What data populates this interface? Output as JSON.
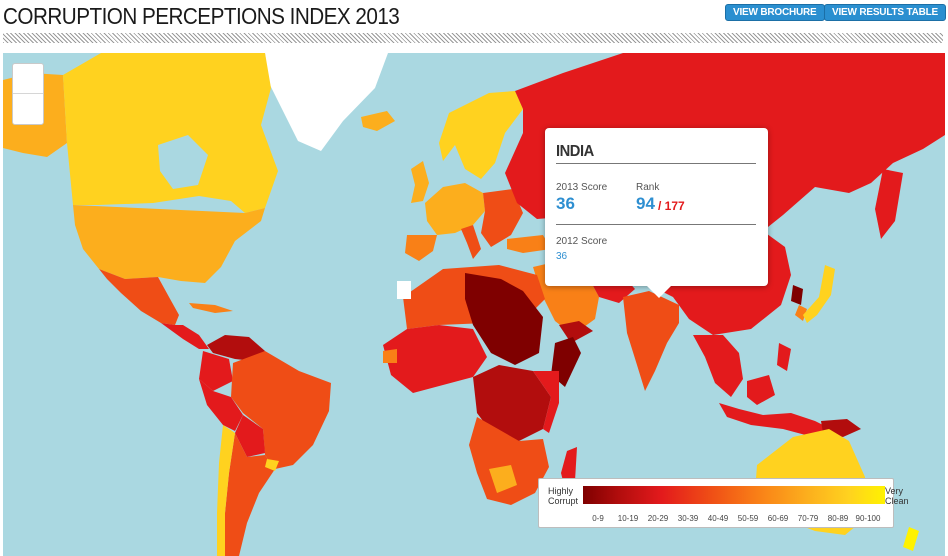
{
  "header": {
    "title": "CORRUPTION PERCEPTIONS INDEX 2013",
    "brochure_label": "VIEW BROCHURE",
    "results_label": "VIEW RESULTS TABLE"
  },
  "map": {
    "zoom_in_icon": "plus-icon",
    "zoom_out_icon": "minus-icon",
    "colors": {
      "ocean": "#aad8e1",
      "score_0_9": "#7f0000",
      "score_10_19": "#b20d0d",
      "score_20_29": "#e31a1c",
      "score_30_39": "#ef4d16",
      "score_40_49": "#f98017",
      "score_50_59": "#fb9a1b",
      "score_60_69": "#fcae1d",
      "score_70_79": "#fec01e",
      "score_80_89": "#ffd21f",
      "score_90_100": "#fff200",
      "no_data": "#ffffff"
    }
  },
  "tooltip": {
    "country": "INDIA",
    "score_2013_label": "2013 Score",
    "score_2013": "36",
    "rank_label": "Rank",
    "rank": "94",
    "rank_of": "/ 177",
    "score_2012_label": "2012 Score",
    "score_2012": "36"
  },
  "legend": {
    "left_label": "Highly Corrupt",
    "right_label": "Very Clean",
    "ranges": [
      "0-9",
      "10-19",
      "20-29",
      "30-39",
      "40-49",
      "50-59",
      "60-69",
      "70-79",
      "80-89",
      "90-100"
    ]
  }
}
